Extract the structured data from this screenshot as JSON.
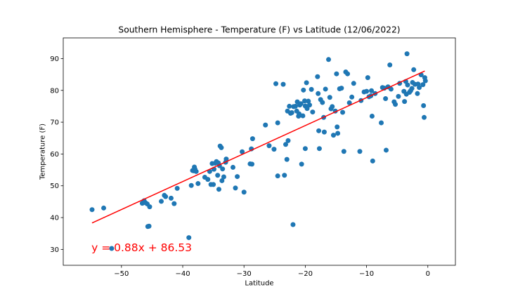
{
  "chart_data": {
    "type": "scatter",
    "title": "Southern Hemisphere - Temperature (F) vs Latitude (12/06/2022)",
    "xlabel": "Latitude",
    "ylabel": "Temperature (F)",
    "xlim": [
      -59.5,
      4.5
    ],
    "ylim": [
      25,
      96.5
    ],
    "xticks": [
      -50,
      -40,
      -30,
      -20,
      -10,
      0
    ],
    "yticks": [
      30,
      40,
      50,
      60,
      70,
      80,
      90
    ],
    "xtick_labels": [
      "−50",
      "−40",
      "−30",
      "−20",
      "−10",
      "0"
    ],
    "ytick_labels": [
      "30",
      "40",
      "50",
      "60",
      "70",
      "80",
      "90"
    ],
    "grid": false,
    "colors": {
      "points": "#1f77b4",
      "regression": "#ff0000"
    },
    "regression": {
      "slope": 0.88,
      "intercept": 86.53,
      "x_range": [
        -54.8,
        -0.5
      ],
      "equation_label": "y = 0.88x + 86.53",
      "label_position": [
        -54.9,
        30.5
      ]
    },
    "points": [
      [
        -54.8,
        42.5
      ],
      [
        -52.9,
        43.0
      ],
      [
        -51.6,
        30.3
      ],
      [
        -46.6,
        44.5
      ],
      [
        -46.3,
        45.3
      ],
      [
        -46.1,
        44.7
      ],
      [
        -45.8,
        44.3
      ],
      [
        -45.7,
        37.2
      ],
      [
        -45.5,
        37.3
      ],
      [
        -45.4,
        43.4
      ],
      [
        -43.5,
        45.1
      ],
      [
        -43.0,
        47.0
      ],
      [
        -42.8,
        46.6
      ],
      [
        -41.9,
        46.1
      ],
      [
        -41.4,
        44.4
      ],
      [
        -40.9,
        49.2
      ],
      [
        -39.0,
        33.7
      ],
      [
        -38.6,
        50.1
      ],
      [
        -38.4,
        54.8
      ],
      [
        -38.2,
        54.7
      ],
      [
        -38.1,
        55.9
      ],
      [
        -38.0,
        55.2
      ],
      [
        -37.8,
        54.5
      ],
      [
        -37.5,
        50.7
      ],
      [
        -36.4,
        52.7
      ],
      [
        -35.9,
        52.0
      ],
      [
        -35.6,
        54.5
      ],
      [
        -35.4,
        50.4
      ],
      [
        -35.2,
        57.0
      ],
      [
        -35.0,
        50.4
      ],
      [
        -34.9,
        55.2
      ],
      [
        -34.7,
        57.1
      ],
      [
        -34.5,
        57.6
      ],
      [
        -34.3,
        53.3
      ],
      [
        -34.2,
        57.2
      ],
      [
        -34.1,
        48.9
      ],
      [
        -34.0,
        56.3
      ],
      [
        -33.9,
        62.5
      ],
      [
        -33.7,
        62.0
      ],
      [
        -33.6,
        51.6
      ],
      [
        -33.5,
        55.3
      ],
      [
        -33.3,
        52.8
      ],
      [
        -33.0,
        57.4
      ],
      [
        -32.9,
        58.4
      ],
      [
        -31.8,
        55.8
      ],
      [
        -31.4,
        49.3
      ],
      [
        -31.1,
        52.9
      ],
      [
        -30.3,
        60.7
      ],
      [
        -30.0,
        48.0
      ],
      [
        -29.0,
        56.9
      ],
      [
        -28.8,
        61.6
      ],
      [
        -28.7,
        56.8
      ],
      [
        -28.6,
        64.8
      ],
      [
        -26.5,
        69.1
      ],
      [
        -25.9,
        62.6
      ],
      [
        -25.1,
        61.5
      ],
      [
        -24.8,
        82.1
      ],
      [
        -24.5,
        69.8
      ],
      [
        -24.5,
        53.1
      ],
      [
        -23.6,
        81.9
      ],
      [
        -23.4,
        53.3
      ],
      [
        -23.2,
        63.0
      ],
      [
        -23.0,
        58.3
      ],
      [
        -22.9,
        73.5
      ],
      [
        -22.8,
        64.2
      ],
      [
        -22.6,
        75.0
      ],
      [
        -22.4,
        72.8
      ],
      [
        -22.2,
        73.0
      ],
      [
        -22.0,
        37.8
      ],
      [
        -21.9,
        74.9
      ],
      [
        -21.6,
        75.0
      ],
      [
        -21.4,
        73.5
      ],
      [
        -21.3,
        76.4
      ],
      [
        -21.1,
        71.9
      ],
      [
        -21.0,
        72.6
      ],
      [
        -20.9,
        75.4
      ],
      [
        -20.7,
        75.8
      ],
      [
        -20.6,
        56.8
      ],
      [
        -20.4,
        72.0
      ],
      [
        -20.3,
        80.1
      ],
      [
        -20.1,
        76.7
      ],
      [
        -20.0,
        61.7
      ],
      [
        -20.0,
        75.1
      ],
      [
        -19.8,
        82.4
      ],
      [
        -19.7,
        74.3
      ],
      [
        -19.5,
        76.6
      ],
      [
        -19.3,
        75.4
      ],
      [
        -19.0,
        80.3
      ],
      [
        -18.8,
        73.2
      ],
      [
        -18.0,
        84.3
      ],
      [
        -17.9,
        79.0
      ],
      [
        -17.8,
        67.3
      ],
      [
        -17.7,
        61.7
      ],
      [
        -17.5,
        77.1
      ],
      [
        -17.2,
        76.2
      ],
      [
        -17.0,
        71.5
      ],
      [
        -16.9,
        66.9
      ],
      [
        -16.7,
        80.4
      ],
      [
        -16.2,
        89.7
      ],
      [
        -16.0,
        77.8
      ],
      [
        -15.8,
        74.2
      ],
      [
        -15.6,
        74.9
      ],
      [
        -15.4,
        65.9
      ],
      [
        -15.1,
        73.5
      ],
      [
        -14.9,
        85.2
      ],
      [
        -14.8,
        68.5
      ],
      [
        -14.7,
        66.5
      ],
      [
        -14.4,
        80.5
      ],
      [
        -14.1,
        80.7
      ],
      [
        -13.9,
        73.1
      ],
      [
        -13.7,
        60.8
      ],
      [
        -13.4,
        85.8
      ],
      [
        -13.1,
        85.2
      ],
      [
        -12.8,
        76.1
      ],
      [
        -12.4,
        77.9
      ],
      [
        -12.1,
        82.2
      ],
      [
        -11.1,
        60.8
      ],
      [
        -10.9,
        76.8
      ],
      [
        -10.4,
        79.5
      ],
      [
        -10.0,
        79.7
      ],
      [
        -9.8,
        84.0
      ],
      [
        -9.6,
        78.0
      ],
      [
        -9.3,
        78.3
      ],
      [
        -9.2,
        79.9
      ],
      [
        -9.1,
        71.9
      ],
      [
        -9.0,
        57.8
      ],
      [
        -8.6,
        79.0
      ],
      [
        -7.6,
        69.8
      ],
      [
        -7.4,
        80.9
      ],
      [
        -7.1,
        80.7
      ],
      [
        -6.9,
        77.4
      ],
      [
        -6.8,
        61.2
      ],
      [
        -6.5,
        81.1
      ],
      [
        -6.2,
        88.0
      ],
      [
        -6.0,
        80.4
      ],
      [
        -5.5,
        76.4
      ],
      [
        -5.3,
        75.6
      ],
      [
        -4.8,
        78.1
      ],
      [
        -4.6,
        82.2
      ],
      [
        -3.9,
        79.7
      ],
      [
        -3.8,
        76.5
      ],
      [
        -3.6,
        82.8
      ],
      [
        -3.5,
        78.8
      ],
      [
        -3.4,
        91.5
      ],
      [
        -3.3,
        81.7
      ],
      [
        -3.0,
        79.4
      ],
      [
        -2.8,
        79.9
      ],
      [
        -2.6,
        80.6
      ],
      [
        -2.5,
        82.5
      ],
      [
        -2.3,
        86.5
      ],
      [
        -2.1,
        81.9
      ],
      [
        -1.7,
        79.0
      ],
      [
        -1.6,
        82.0
      ],
      [
        -1.4,
        80.9
      ],
      [
        -1.1,
        84.9
      ],
      [
        -0.8,
        81.8
      ],
      [
        -0.7,
        75.2
      ],
      [
        -0.6,
        71.5
      ],
      [
        -0.5,
        84.0
      ],
      [
        -0.4,
        83.0
      ]
    ]
  }
}
